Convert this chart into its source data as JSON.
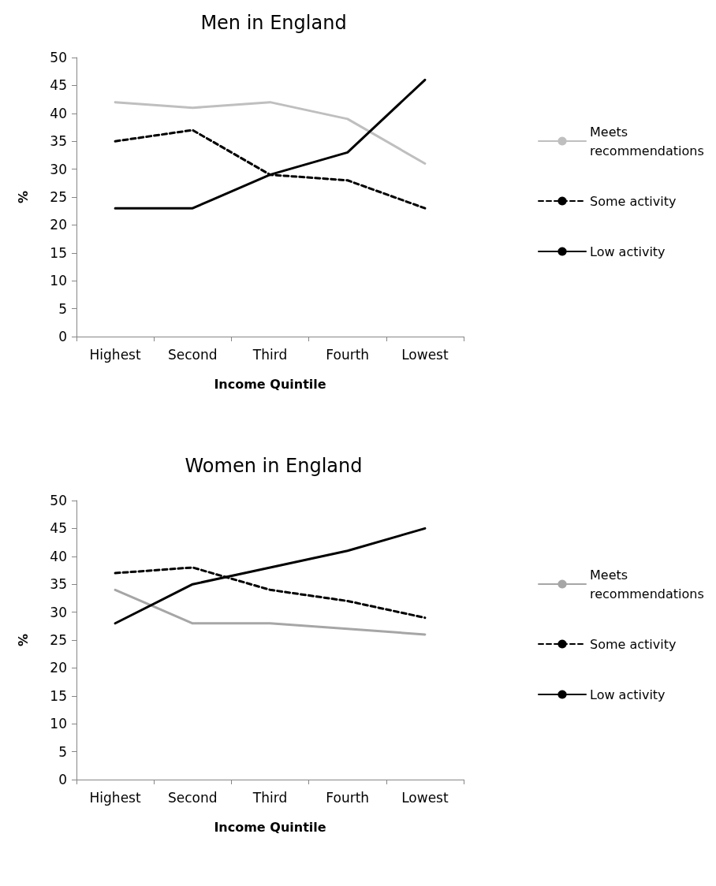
{
  "chart_data": [
    {
      "type": "line",
      "title": "Men in England",
      "xlabel": "Income Quintile",
      "ylabel": "%",
      "categories": [
        "Highest",
        "Second",
        "Third",
        "Fourth",
        "Lowest"
      ],
      "ylim": [
        0,
        50
      ],
      "yticks": [
        0,
        5,
        10,
        15,
        20,
        25,
        30,
        35,
        40,
        45,
        50
      ],
      "grid": false,
      "legend": "right",
      "marker": "none",
      "series": [
        {
          "name": "Meets recommendations",
          "color": "#bfbfbf",
          "line_style": "solid",
          "values": [
            42,
            41,
            42,
            39,
            31
          ]
        },
        {
          "name": "Some activity",
          "color": "#000000",
          "line_style": "dashed",
          "values": [
            35,
            37,
            29,
            28,
            23
          ]
        },
        {
          "name": "Low activity",
          "color": "#000000",
          "line_style": "solid",
          "values": [
            23,
            23,
            29,
            33,
            46
          ]
        }
      ]
    },
    {
      "type": "line",
      "title": "Women in England",
      "xlabel": "Income Quintile",
      "ylabel": "%",
      "categories": [
        "Highest",
        "Second",
        "Third",
        "Fourth",
        "Lowest"
      ],
      "ylim": [
        0,
        50
      ],
      "yticks": [
        0,
        5,
        10,
        15,
        20,
        25,
        30,
        35,
        40,
        45,
        50
      ],
      "grid": false,
      "legend": "right",
      "marker": "none",
      "series": [
        {
          "name": "Meets recommendations",
          "color": "#a6a6a6",
          "line_style": "solid",
          "values": [
            34,
            28,
            28,
            27,
            26
          ]
        },
        {
          "name": "Some activity",
          "color": "#000000",
          "line_style": "dashed",
          "values": [
            37,
            38,
            34,
            32,
            29
          ]
        },
        {
          "name": "Low activity",
          "color": "#000000",
          "line_style": "solid",
          "values": [
            28,
            35,
            38,
            41,
            45
          ]
        }
      ]
    }
  ]
}
